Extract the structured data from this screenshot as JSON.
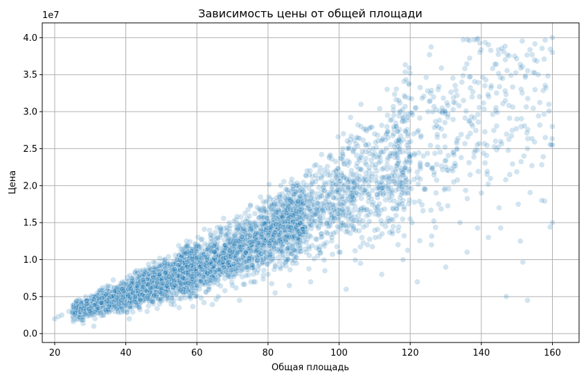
{
  "chart_data": {
    "type": "scatter",
    "title": "Зависимость цены от общей площади",
    "xlabel": "Общая площадь",
    "ylabel": "Цена",
    "y_offset_label": "1e7",
    "xlim": [
      16.5,
      167.5
    ],
    "ylim": [
      -1200000,
      42000000
    ],
    "x_ticks": [
      20,
      40,
      60,
      80,
      100,
      120,
      140,
      160
    ],
    "x_tick_labels": [
      "20",
      "40",
      "60",
      "80",
      "100",
      "120",
      "140",
      "160"
    ],
    "y_ticks": [
      0,
      5000000,
      10000000,
      15000000,
      20000000,
      25000000,
      30000000,
      35000000,
      40000000
    ],
    "y_tick_labels": [
      "0.0",
      "0.5",
      "1.0",
      "1.5",
      "2.0",
      "2.5",
      "3.0",
      "3.5",
      "4.0"
    ],
    "grid": true,
    "point_color": "#1f77b4",
    "point_opacity": 0.2,
    "sample_points": [
      [
        20,
        2000000
      ],
      [
        21,
        2300000
      ],
      [
        22,
        2500000
      ],
      [
        24,
        3000000
      ],
      [
        25,
        2800000
      ],
      [
        26,
        3500000
      ],
      [
        28,
        2200000
      ],
      [
        29,
        4000000
      ],
      [
        30,
        3000000
      ],
      [
        31,
        1000000
      ],
      [
        32,
        3500000
      ],
      [
        33,
        4200000
      ],
      [
        35,
        3200000
      ],
      [
        36,
        5000000
      ],
      [
        38,
        4000000
      ],
      [
        39,
        6000000
      ],
      [
        40,
        3800000
      ],
      [
        41,
        2000000
      ],
      [
        42,
        5500000
      ],
      [
        44,
        4500000
      ],
      [
        45,
        7000000
      ],
      [
        46,
        3000000
      ],
      [
        48,
        5200000
      ],
      [
        50,
        6000000
      ],
      [
        51,
        8200000
      ],
      [
        52,
        4500000
      ],
      [
        54,
        6500000
      ],
      [
        55,
        3500000
      ],
      [
        56,
        7500000
      ],
      [
        58,
        5000000
      ],
      [
        60,
        6500000
      ],
      [
        61,
        9000000
      ],
      [
        62,
        4200000
      ],
      [
        64,
        7200000
      ],
      [
        65,
        11000000
      ],
      [
        66,
        5000000
      ],
      [
        68,
        8000000
      ],
      [
        70,
        6500000
      ],
      [
        71,
        12500000
      ],
      [
        72,
        4500000
      ],
      [
        74,
        9000000
      ],
      [
        75,
        15000000
      ],
      [
        76,
        7000000
      ],
      [
        78,
        10000000
      ],
      [
        80,
        8000000
      ],
      [
        81,
        17500000
      ],
      [
        82,
        5500000
      ],
      [
        84,
        11000000
      ],
      [
        85,
        19500000
      ],
      [
        86,
        6500000
      ],
      [
        88,
        9500000
      ],
      [
        90,
        12500000
      ],
      [
        91,
        22000000
      ],
      [
        92,
        7000000
      ],
      [
        94,
        10500000
      ],
      [
        95,
        21000000
      ],
      [
        96,
        8500000
      ],
      [
        98,
        13000000
      ],
      [
        100,
        11000000
      ],
      [
        101,
        25000000
      ],
      [
        102,
        6000000
      ],
      [
        104,
        14500000
      ],
      [
        105,
        19000000
      ],
      [
        106,
        9500000
      ],
      [
        108,
        12000000
      ],
      [
        110,
        27000000
      ],
      [
        111,
        16000000
      ],
      [
        112,
        8000000
      ],
      [
        114,
        21000000
      ],
      [
        115,
        13500000
      ],
      [
        116,
        28000000
      ],
      [
        118,
        10000000
      ],
      [
        120,
        15500000
      ],
      [
        121,
        27000000
      ],
      [
        122,
        7000000
      ],
      [
        124,
        19500000
      ],
      [
        125,
        30000000
      ],
      [
        126,
        12000000
      ],
      [
        128,
        17500000
      ],
      [
        129,
        30500000
      ],
      [
        130,
        9000000
      ],
      [
        132,
        22000000
      ],
      [
        134,
        15000000
      ],
      [
        135,
        31500000
      ],
      [
        136,
        11000000
      ],
      [
        138,
        24500000
      ],
      [
        140,
        19000000
      ],
      [
        141,
        33500000
      ],
      [
        142,
        13000000
      ],
      [
        144,
        26000000
      ],
      [
        145,
        17000000
      ],
      [
        146,
        34500000
      ],
      [
        147,
        5000000
      ],
      [
        148,
        21500000
      ],
      [
        150,
        29000000
      ],
      [
        151,
        12500000
      ],
      [
        152,
        24000000
      ],
      [
        153,
        4500000
      ],
      [
        155,
        37000000
      ],
      [
        156,
        35000000
      ],
      [
        157,
        18000000
      ],
      [
        158,
        26500000
      ],
      [
        159,
        31000000
      ],
      [
        160,
        40000000
      ],
      [
        160,
        38000000
      ],
      [
        160,
        28000000
      ],
      [
        160,
        25500000
      ],
      [
        160,
        15000000
      ]
    ]
  }
}
